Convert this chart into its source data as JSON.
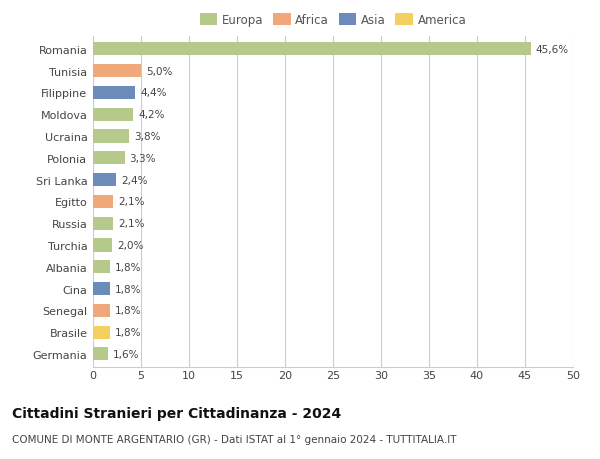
{
  "categories": [
    "Romania",
    "Tunisia",
    "Filippine",
    "Moldova",
    "Ucraina",
    "Polonia",
    "Sri Lanka",
    "Egitto",
    "Russia",
    "Turchia",
    "Albania",
    "Cina",
    "Senegal",
    "Brasile",
    "Germania"
  ],
  "values": [
    45.6,
    5.0,
    4.4,
    4.2,
    3.8,
    3.3,
    2.4,
    2.1,
    2.1,
    2.0,
    1.8,
    1.8,
    1.8,
    1.8,
    1.6
  ],
  "labels": [
    "45,6%",
    "5,0%",
    "4,4%",
    "4,2%",
    "3,8%",
    "3,3%",
    "2,4%",
    "2,1%",
    "2,1%",
    "2,0%",
    "1,8%",
    "1,8%",
    "1,8%",
    "1,8%",
    "1,6%"
  ],
  "continents": [
    "Europa",
    "Africa",
    "Asia",
    "Europa",
    "Europa",
    "Europa",
    "Asia",
    "Africa",
    "Europa",
    "Europa",
    "Europa",
    "Asia",
    "Africa",
    "America",
    "Europa"
  ],
  "continent_colors": {
    "Europa": "#b5c98a",
    "Africa": "#f0a878",
    "Asia": "#6b8cba",
    "America": "#f5d060"
  },
  "legend_items": [
    "Europa",
    "Africa",
    "Asia",
    "America"
  ],
  "legend_colors": [
    "#b5c98a",
    "#f0a878",
    "#6b8cba",
    "#f5d060"
  ],
  "xlim": [
    0,
    50
  ],
  "xticks": [
    0,
    5,
    10,
    15,
    20,
    25,
    30,
    35,
    40,
    45,
    50
  ],
  "title": "Cittadini Stranieri per Cittadinanza - 2024",
  "subtitle": "COMUNE DI MONTE ARGENTARIO (GR) - Dati ISTAT al 1° gennaio 2024 - TUTTITALIA.IT",
  "background_color": "#ffffff",
  "grid_color": "#cccccc",
  "bar_height": 0.6,
  "label_fontsize": 7.5,
  "title_fontsize": 10,
  "subtitle_fontsize": 7.5,
  "tick_fontsize": 8,
  "ytick_fontsize": 8
}
